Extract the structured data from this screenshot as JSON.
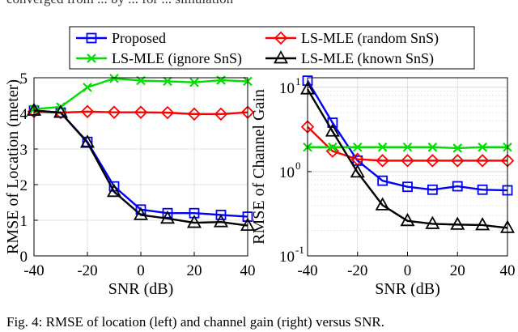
{
  "caption_top": "converged from ... by ... for ... simulation",
  "caption": "Fig. 4: RMSE of location (left) and channel gain (right) versus SNR.",
  "legend": {
    "entries": [
      {
        "label": "Proposed",
        "color": "#0000ff",
        "marker": "square"
      },
      {
        "label": "LS-MLE (random SnS)",
        "color": "#ff0000",
        "marker": "diamond"
      },
      {
        "label": "LS-MLE (ignore SnS)",
        "color": "#00dd00",
        "marker": "x"
      },
      {
        "label": "LS-MLE (known SnS)",
        "color": "#000000",
        "marker": "triangle"
      }
    ]
  },
  "chart_data": [
    {
      "type": "line",
      "title": "",
      "xlabel": "SNR (dB)",
      "ylabel": "RMSE of Location (meter)",
      "x": [
        -40,
        -30,
        -20,
        -10,
        0,
        10,
        20,
        30,
        40
      ],
      "xlim": [
        -40,
        40
      ],
      "ylim": [
        0,
        5
      ],
      "yscale": "linear",
      "grid": true,
      "xticks": [
        -40,
        -20,
        0,
        20,
        40
      ],
      "xtick_labels": [
        "-40",
        "-20",
        "0",
        "20",
        "40"
      ],
      "yticks": [
        0,
        1,
        2,
        3,
        4,
        5
      ],
      "ytick_labels": [
        "0",
        "1",
        "2",
        "3",
        "4",
        "5"
      ],
      "series": [
        {
          "name": "Proposed",
          "marker": "square",
          "color": "#0000ff",
          "values": [
            4.08,
            4.02,
            3.2,
            1.95,
            1.3,
            1.2,
            1.2,
            1.15,
            1.1
          ]
        },
        {
          "name": "LS-MLE (random SnS)",
          "marker": "diamond",
          "color": "#ff0000",
          "values": [
            4.05,
            4.02,
            4.05,
            4.03,
            4.03,
            4.02,
            3.98,
            3.98,
            4.03
          ]
        },
        {
          "name": "LS-MLE (ignore SnS)",
          "marker": "x",
          "color": "#00dd00",
          "values": [
            4.12,
            4.18,
            4.73,
            4.98,
            4.92,
            4.9,
            4.87,
            4.93,
            4.9
          ]
        },
        {
          "name": "LS-MLE (known SnS)",
          "marker": "triangle",
          "color": "#000000",
          "values": [
            4.08,
            4.02,
            3.18,
            1.8,
            1.15,
            1.05,
            0.93,
            0.95,
            0.85
          ]
        }
      ]
    },
    {
      "type": "line",
      "title": "",
      "xlabel": "SNR (dB)",
      "ylabel": "RMSE of Channel Gain",
      "x": [
        -40,
        -30,
        -20,
        -10,
        0,
        10,
        20,
        30,
        40
      ],
      "xlim": [
        -40,
        40
      ],
      "ylim": [
        0.1,
        13
      ],
      "yscale": "log",
      "grid": true,
      "xticks": [
        -40,
        -20,
        0,
        20,
        40
      ],
      "xtick_labels": [
        "-40",
        "-20",
        "0",
        "20",
        "40"
      ],
      "yticks": [
        0.1,
        1,
        10
      ],
      "ytick_labels": [
        {
          "base": "10",
          "exp": "-1"
        },
        {
          "base": "10",
          "exp": "0"
        },
        {
          "base": "10",
          "exp": "1"
        }
      ],
      "series": [
        {
          "name": "Proposed",
          "marker": "square",
          "color": "#0000ff",
          "values": [
            12.0,
            3.8,
            1.35,
            0.78,
            0.66,
            0.61,
            0.67,
            0.61,
            0.6
          ]
        },
        {
          "name": "LS-MLE (random SnS)",
          "marker": "diamond",
          "color": "#ff0000",
          "values": [
            3.4,
            1.75,
            1.4,
            1.35,
            1.35,
            1.35,
            1.35,
            1.35,
            1.35
          ]
        },
        {
          "name": "LS-MLE (ignore SnS)",
          "marker": "x",
          "color": "#00dd00",
          "values": [
            1.95,
            1.95,
            1.95,
            1.95,
            1.95,
            1.95,
            1.9,
            1.95,
            1.95
          ]
        },
        {
          "name": "LS-MLE (known SnS)",
          "marker": "triangle",
          "color": "#000000",
          "values": [
            9.5,
            3.0,
            0.98,
            0.4,
            0.26,
            0.24,
            0.235,
            0.232,
            0.215
          ]
        }
      ]
    }
  ]
}
